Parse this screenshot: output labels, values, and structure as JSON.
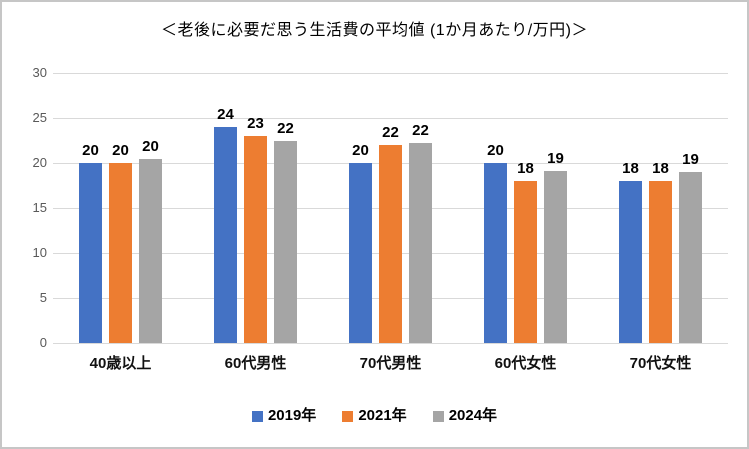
{
  "window": {
    "background_color": "#FFFFFF",
    "border_color": "#C6C6C6"
  },
  "chart_data": {
    "type": "bar",
    "title": "＜老後に必要だ思う生活費の平均値 (1か月あたり/万円)＞",
    "categories": [
      "40歳以上",
      "60代男性",
      "70代男性",
      "60代女性",
      "70代女性"
    ],
    "series": [
      {
        "name": "2019年",
        "color": "#4472C4",
        "values": [
          20,
          24,
          20,
          20,
          18
        ]
      },
      {
        "name": "2021年",
        "color": "#ED7D31",
        "values": [
          20,
          23,
          22,
          18,
          18
        ]
      },
      {
        "name": "2024年",
        "color": "#A5A5A5",
        "values": [
          20,
          22,
          22,
          19,
          19
        ],
        "display_heights": [
          20.4,
          22.4,
          22.2,
          19.1,
          19.0
        ]
      }
    ],
    "value_labels_shown": true,
    "xlabel": "",
    "ylabel": "",
    "ylim": [
      0,
      30
    ],
    "y_ticks": [
      0,
      5,
      10,
      15,
      20,
      25,
      30
    ],
    "grid": true,
    "gridline_color": "#D9D9D9",
    "axis_tick_color": "#595959",
    "data_label_color": "#000000",
    "legend_position": "bottom"
  }
}
